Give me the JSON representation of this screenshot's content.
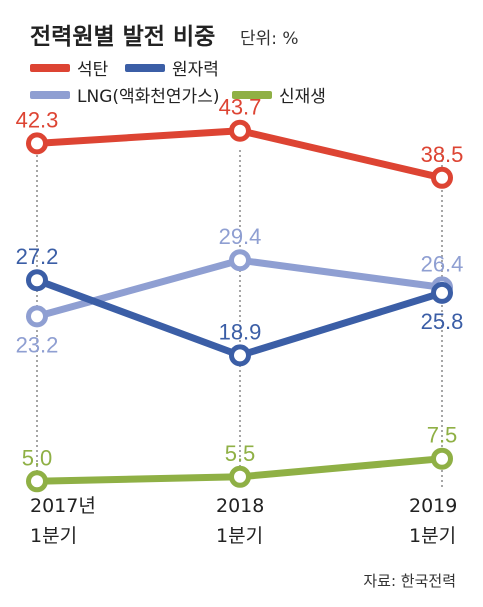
{
  "chart_data": {
    "type": "line",
    "title": "전력원별 발전 비중",
    "unit_label": "단위: %",
    "source": "자료: 한국전력",
    "categories": [
      {
        "year": "2017년",
        "quarter": "1분기"
      },
      {
        "year": "2018",
        "quarter": "1분기"
      },
      {
        "year": "2019",
        "quarter": "1분기"
      }
    ],
    "ylim": [
      0,
      50
    ],
    "grid": false,
    "legend_position": "top-left",
    "series": [
      {
        "name": "석탄",
        "color": "#dd4433",
        "values": [
          42.3,
          43.7,
          38.5
        ],
        "labels": [
          "42.3",
          "43.7",
          "38.5"
        ],
        "label_pos": [
          "above",
          "above",
          "above"
        ]
      },
      {
        "name": "원자력",
        "color": "#3b5ea6",
        "values": [
          27.2,
          18.9,
          25.8
        ],
        "labels": [
          "27.2",
          "18.9",
          "25.8"
        ],
        "label_pos": [
          "above",
          "above",
          "below"
        ]
      },
      {
        "name": "LNG(액화천연가스)",
        "color": "#8f9fd2",
        "values": [
          23.2,
          29.4,
          26.4
        ],
        "labels": [
          "23.2",
          "29.4",
          "26.4"
        ],
        "label_pos": [
          "below",
          "above",
          "above"
        ]
      },
      {
        "name": "신재생",
        "color": "#8fb045",
        "values": [
          5.0,
          5.5,
          7.5
        ],
        "labels": [
          "5.0",
          "5.5",
          "7.5"
        ],
        "label_pos": [
          "above",
          "above",
          "above"
        ]
      }
    ]
  }
}
